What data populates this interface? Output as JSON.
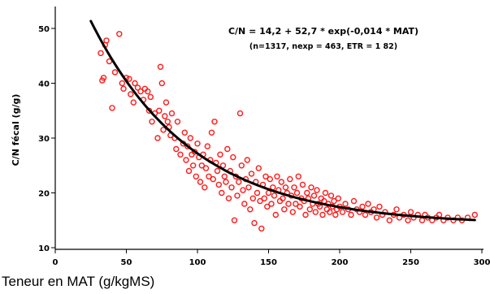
{
  "chart_data": {
    "type": "scatter",
    "title": "",
    "xlabel": "Teneur en MAT (g/kgMS)",
    "ylabel": "C/N fécal (g/g)",
    "xlim": [
      0,
      300
    ],
    "ylim": [
      10,
      55
    ],
    "x_ticks": [
      0,
      50,
      100,
      150,
      200,
      250,
      300
    ],
    "y_ticks": [
      10,
      20,
      30,
      40,
      50
    ],
    "grid": false,
    "annotations": [
      "C/N = 14,2 + 52,7 * exp(-0,014 * MAT)",
      "(n=1317, nexp = 463, ETR = 1 82)"
    ],
    "fit": {
      "a": 14.2,
      "b": 52.7,
      "c": -0.014,
      "x_from": 25,
      "x_to": 295
    },
    "colors": {
      "points": "#ff1a1a",
      "fit": "#000000"
    },
    "points": [
      [
        32,
        45.5
      ],
      [
        33,
        40.5
      ],
      [
        34,
        41
      ],
      [
        35,
        47
      ],
      [
        36,
        47.8
      ],
      [
        38,
        44
      ],
      [
        40,
        35.5
      ],
      [
        42,
        42
      ],
      [
        45,
        49
      ],
      [
        47,
        40
      ],
      [
        48,
        39
      ],
      [
        50,
        41
      ],
      [
        52,
        40.8
      ],
      [
        53,
        38
      ],
      [
        55,
        36.5
      ],
      [
        56,
        40
      ],
      [
        58,
        39.2
      ],
      [
        60,
        38.5
      ],
      [
        62,
        37
      ],
      [
        63,
        39
      ],
      [
        65,
        38.5
      ],
      [
        66,
        35
      ],
      [
        67,
        37.5
      ],
      [
        68,
        33
      ],
      [
        70,
        34.5
      ],
      [
        72,
        30
      ],
      [
        73,
        35
      ],
      [
        74,
        43
      ],
      [
        75,
        40
      ],
      [
        76,
        31.5
      ],
      [
        77,
        34
      ],
      [
        78,
        36.5
      ],
      [
        79,
        33
      ],
      [
        80,
        32
      ],
      [
        81,
        30.5
      ],
      [
        82,
        34.5
      ],
      [
        84,
        30
      ],
      [
        85,
        28
      ],
      [
        86,
        33
      ],
      [
        88,
        27
      ],
      [
        90,
        29
      ],
      [
        91,
        31
      ],
      [
        92,
        26
      ],
      [
        93,
        28.5
      ],
      [
        94,
        24
      ],
      [
        95,
        30
      ],
      [
        96,
        27
      ],
      [
        97,
        25
      ],
      [
        98,
        27.5
      ],
      [
        99,
        23
      ],
      [
        100,
        29
      ],
      [
        101,
        26.5
      ],
      [
        102,
        22
      ],
      [
        103,
        25
      ],
      [
        104,
        27
      ],
      [
        105,
        21
      ],
      [
        106,
        24.5
      ],
      [
        107,
        28.5
      ],
      [
        108,
        23
      ],
      [
        109,
        26
      ],
      [
        110,
        31
      ],
      [
        111,
        22.5
      ],
      [
        112,
        33
      ],
      [
        113,
        25.5
      ],
      [
        114,
        24
      ],
      [
        115,
        21.5
      ],
      [
        116,
        27
      ],
      [
        117,
        20
      ],
      [
        118,
        25
      ],
      [
        119,
        23
      ],
      [
        120,
        22
      ],
      [
        121,
        28
      ],
      [
        122,
        19
      ],
      [
        123,
        24
      ],
      [
        124,
        21
      ],
      [
        125,
        26.5
      ],
      [
        126,
        15
      ],
      [
        127,
        23
      ],
      [
        128,
        19.5
      ],
      [
        129,
        22
      ],
      [
        130,
        34.5
      ],
      [
        131,
        25
      ],
      [
        132,
        20.5
      ],
      [
        133,
        18
      ],
      [
        134,
        22.5
      ],
      [
        135,
        26
      ],
      [
        136,
        21
      ],
      [
        137,
        17
      ],
      [
        138,
        23.5
      ],
      [
        139,
        19
      ],
      [
        140,
        14.5
      ],
      [
        141,
        22
      ],
      [
        142,
        20
      ],
      [
        143,
        24.5
      ],
      [
        144,
        18.5
      ],
      [
        145,
        13.5
      ],
      [
        146,
        21.5
      ],
      [
        147,
        19
      ],
      [
        148,
        23
      ],
      [
        149,
        17.5
      ],
      [
        150,
        20
      ],
      [
        151,
        22.5
      ],
      [
        152,
        18
      ],
      [
        153,
        21
      ],
      [
        154,
        19.5
      ],
      [
        155,
        16
      ],
      [
        156,
        23
      ],
      [
        157,
        20.5
      ],
      [
        158,
        18.5
      ],
      [
        159,
        22
      ],
      [
        160,
        19
      ],
      [
        161,
        17
      ],
      [
        162,
        21
      ],
      [
        163,
        20
      ],
      [
        164,
        18
      ],
      [
        165,
        22.5
      ],
      [
        166,
        19.5
      ],
      [
        167,
        16.5
      ],
      [
        168,
        21
      ],
      [
        169,
        18
      ],
      [
        170,
        20
      ],
      [
        171,
        23
      ],
      [
        172,
        17.5
      ],
      [
        173,
        19
      ],
      [
        174,
        21.5
      ],
      [
        175,
        18.5
      ],
      [
        176,
        16
      ],
      [
        177,
        20
      ],
      [
        178,
        19
      ],
      [
        179,
        17
      ],
      [
        180,
        21
      ],
      [
        181,
        18
      ],
      [
        182,
        19.5
      ],
      [
        183,
        16.5
      ],
      [
        184,
        20.5
      ],
      [
        185,
        18
      ],
      [
        186,
        17.5
      ],
      [
        187,
        19
      ],
      [
        188,
        16
      ],
      [
        189,
        18.5
      ],
      [
        190,
        20
      ],
      [
        191,
        17
      ],
      [
        192,
        18
      ],
      [
        193,
        16.5
      ],
      [
        194,
        19.5
      ],
      [
        195,
        17.5
      ],
      [
        196,
        18.5
      ],
      [
        197,
        16
      ],
      [
        198,
        17
      ],
      [
        199,
        19
      ],
      [
        200,
        17.5
      ],
      [
        202,
        16.5
      ],
      [
        204,
        18
      ],
      [
        206,
        17
      ],
      [
        208,
        16
      ],
      [
        210,
        18.5
      ],
      [
        212,
        17
      ],
      [
        214,
        16.5
      ],
      [
        216,
        17.5
      ],
      [
        218,
        16
      ],
      [
        220,
        18
      ],
      [
        222,
        16.5
      ],
      [
        224,
        17
      ],
      [
        226,
        15.5
      ],
      [
        228,
        17.5
      ],
      [
        230,
        16
      ],
      [
        232,
        16.5
      ],
      [
        235,
        15
      ],
      [
        238,
        16
      ],
      [
        240,
        17
      ],
      [
        242,
        15.5
      ],
      [
        245,
        16
      ],
      [
        248,
        15
      ],
      [
        250,
        16.5
      ],
      [
        252,
        15.5
      ],
      [
        255,
        16
      ],
      [
        258,
        15
      ],
      [
        260,
        16
      ],
      [
        262,
        15.5
      ],
      [
        265,
        15
      ],
      [
        268,
        15.5
      ],
      [
        270,
        16
      ],
      [
        273,
        15
      ],
      [
        276,
        15.5
      ],
      [
        280,
        15
      ],
      [
        283,
        15.5
      ],
      [
        286,
        15
      ],
      [
        290,
        15.5
      ],
      [
        295,
        16
      ]
    ]
  }
}
